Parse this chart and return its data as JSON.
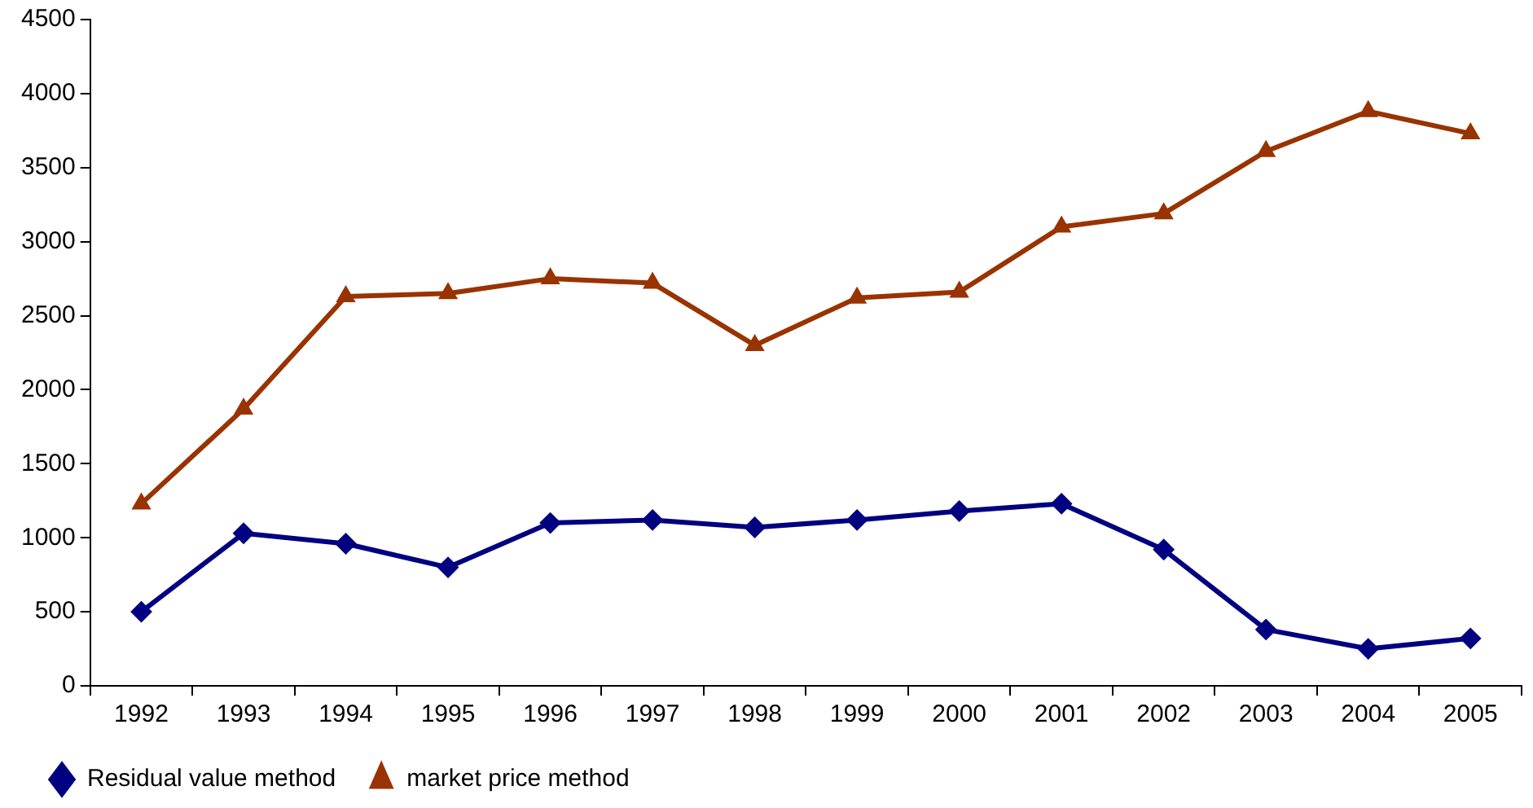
{
  "chart_data": {
    "type": "line",
    "categories": [
      "1992",
      "1993",
      "1994",
      "1995",
      "1996",
      "1997",
      "1998",
      "1999",
      "2000",
      "2001",
      "2002",
      "2003",
      "2004",
      "2005"
    ],
    "ylim": [
      0,
      4500
    ],
    "yticks": [
      0,
      500,
      1000,
      1500,
      2000,
      2500,
      3000,
      3500,
      4000,
      4500
    ],
    "grid": false,
    "legend": "bottom left",
    "line_style": "solid",
    "series": [
      {
        "name": "Residual value method",
        "color": "#000080",
        "marker": "diamond",
        "values": [
          500,
          1030,
          960,
          800,
          1100,
          1120,
          1070,
          1120,
          1180,
          1230,
          920,
          380,
          250,
          320
        ]
      },
      {
        "name": "market price method",
        "color": "#993300",
        "marker": "triangle",
        "values": [
          1230,
          1870,
          2630,
          2650,
          2750,
          2720,
          2300,
          2620,
          2660,
          3100,
          3190,
          3610,
          3880,
          3730
        ]
      }
    ]
  }
}
